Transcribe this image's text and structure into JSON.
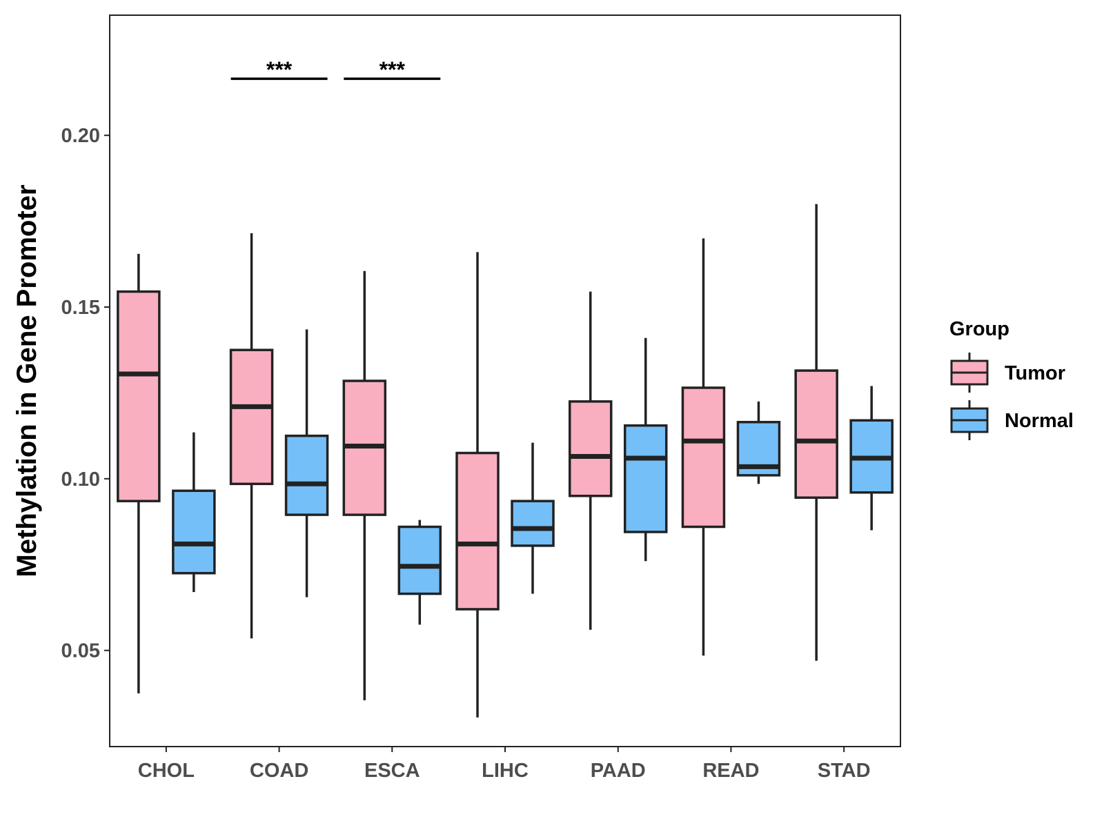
{
  "chart_data": {
    "type": "boxplot",
    "title": "",
    "xlabel": "",
    "ylabel": "Methylation in Gene Promoter",
    "ylim": [
      0.022,
      0.235
    ],
    "yticks": [
      0.05,
      0.1,
      0.15,
      0.2
    ],
    "ytick_labels": [
      "0.05",
      "0.10",
      "0.15",
      "0.20"
    ],
    "categories": [
      "CHOL",
      "COAD",
      "ESCA",
      "LIHC",
      "PAAD",
      "READ",
      "STAD"
    ],
    "legend": {
      "title": "Group",
      "position": "right",
      "entries": [
        "Tumor",
        "Normal"
      ]
    },
    "colors": {
      "Tumor": "#F9AFC0",
      "Normal": "#74BFF8",
      "stroke": "#222222"
    },
    "series": [
      {
        "name": "Tumor",
        "boxes": [
          {
            "min": 0.0375,
            "q1": 0.0935,
            "median": 0.1305,
            "q3": 0.1545,
            "max": 0.1655
          },
          {
            "min": 0.0535,
            "q1": 0.0985,
            "median": 0.121,
            "q3": 0.1375,
            "max": 0.1715
          },
          {
            "min": 0.0355,
            "q1": 0.0895,
            "median": 0.1095,
            "q3": 0.1285,
            "max": 0.1605
          },
          {
            "min": 0.0305,
            "q1": 0.062,
            "median": 0.081,
            "q3": 0.1075,
            "max": 0.166
          },
          {
            "min": 0.056,
            "q1": 0.095,
            "median": 0.1065,
            "q3": 0.1225,
            "max": 0.1545
          },
          {
            "min": 0.0485,
            "q1": 0.086,
            "median": 0.111,
            "q3": 0.1265,
            "max": 0.17
          },
          {
            "min": 0.047,
            "q1": 0.0945,
            "median": 0.111,
            "q3": 0.1315,
            "max": 0.18
          }
        ]
      },
      {
        "name": "Normal",
        "boxes": [
          {
            "min": 0.067,
            "q1": 0.0725,
            "median": 0.081,
            "q3": 0.0965,
            "max": 0.1135
          },
          {
            "min": 0.0655,
            "q1": 0.0895,
            "median": 0.0985,
            "q3": 0.1125,
            "max": 0.1435
          },
          {
            "min": 0.0575,
            "q1": 0.0665,
            "median": 0.0745,
            "q3": 0.086,
            "max": 0.088
          },
          {
            "min": 0.0665,
            "q1": 0.0805,
            "median": 0.0855,
            "q3": 0.0935,
            "max": 0.1105
          },
          {
            "min": 0.076,
            "q1": 0.0845,
            "median": 0.106,
            "q3": 0.1155,
            "max": 0.141
          },
          {
            "min": 0.0985,
            "q1": 0.101,
            "median": 0.1035,
            "q3": 0.1165,
            "max": 0.1225
          },
          {
            "min": 0.085,
            "q1": 0.096,
            "median": 0.106,
            "q3": 0.117,
            "max": 0.127
          }
        ]
      }
    ],
    "annotations": [
      {
        "category": "COAD",
        "label": "***",
        "y": 0.2165
      },
      {
        "category": "ESCA",
        "label": "***",
        "y": 0.2165
      }
    ]
  }
}
